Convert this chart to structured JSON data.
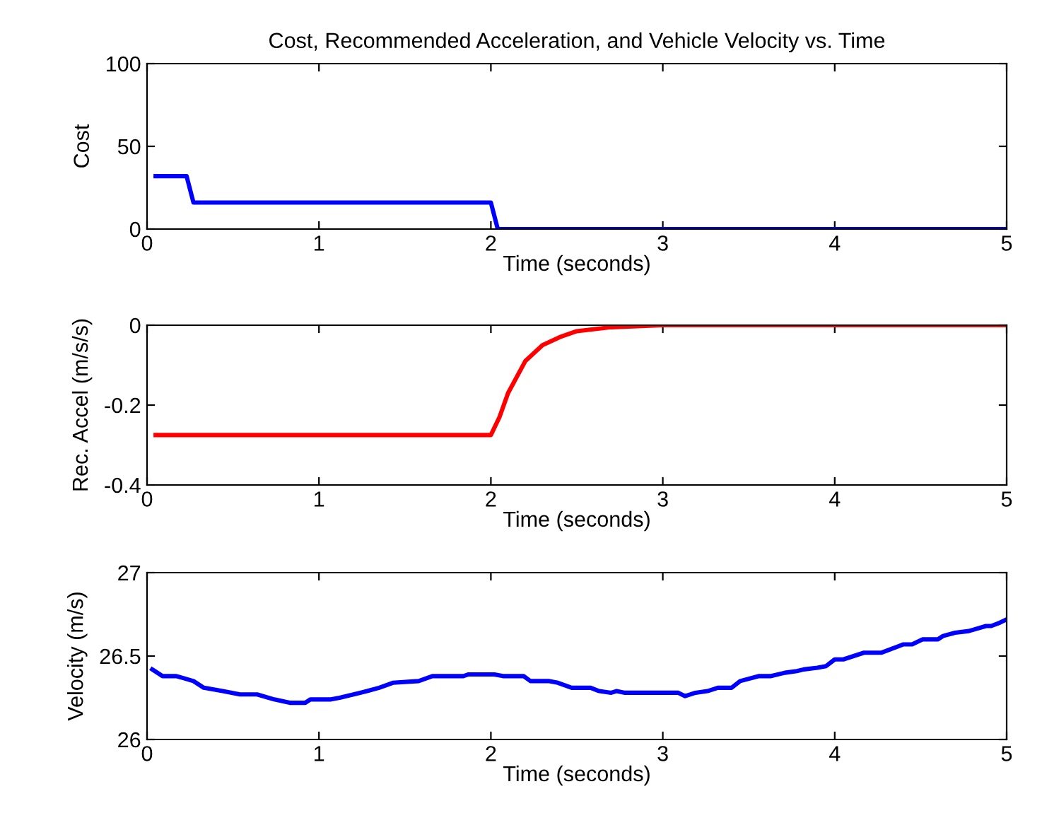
{
  "chart_data": [
    {
      "type": "line",
      "title": "Cost, Recommended Acceleration, and Vehicle Velocity vs. Time",
      "xlabel": "Time (seconds)",
      "ylabel": "Cost",
      "xlim": [
        0,
        5
      ],
      "xticks": [
        0,
        1,
        2,
        3,
        4,
        5
      ],
      "ylim": [
        0,
        100
      ],
      "yticks": [
        0,
        50,
        100
      ],
      "grid": false,
      "legend": false,
      "series": [
        {
          "color": "#0000ff",
          "x": [
            0.05,
            0.23,
            0.27,
            2.0,
            2.04,
            5.0
          ],
          "values": [
            32,
            32,
            16,
            16,
            0,
            0
          ]
        }
      ]
    },
    {
      "type": "line",
      "xlabel": "Time (seconds)",
      "ylabel": "Rec. Accel (m/s/s)",
      "xlim": [
        0,
        5
      ],
      "xticks": [
        0,
        1,
        2,
        3,
        4,
        5
      ],
      "ylim": [
        -0.4,
        0
      ],
      "yticks": [
        -0.4,
        -0.2,
        0
      ],
      "grid": false,
      "legend": false,
      "series": [
        {
          "color": "#ff0000",
          "x": [
            0.05,
            2.0,
            2.05,
            2.1,
            2.2,
            2.3,
            2.4,
            2.5,
            2.7,
            3.0,
            5.0
          ],
          "values": [
            -0.275,
            -0.275,
            -0.23,
            -0.17,
            -0.09,
            -0.05,
            -0.03,
            -0.015,
            -0.005,
            0,
            0
          ]
        }
      ]
    },
    {
      "type": "line",
      "xlabel": "Time (seconds)",
      "ylabel": "Velocity (m/s)",
      "xlim": [
        0,
        5
      ],
      "xticks": [
        0,
        1,
        2,
        3,
        4,
        5
      ],
      "ylim": [
        26,
        27
      ],
      "yticks": [
        26,
        26.5,
        27
      ],
      "grid": false,
      "legend": false,
      "series": [
        {
          "color": "#0000ff",
          "x": [
            0.03,
            0.09,
            0.17,
            0.27,
            0.33,
            0.44,
            0.54,
            0.64,
            0.74,
            0.83,
            0.92,
            0.95,
            1.07,
            1.12,
            1.28,
            1.35,
            1.43,
            1.58,
            1.66,
            1.84,
            1.87,
            2.02,
            2.07,
            2.19,
            2.23,
            2.34,
            2.39,
            2.47,
            2.58,
            2.63,
            2.7,
            2.73,
            2.78,
            3.09,
            3.13,
            3.19,
            3.26,
            3.32,
            3.4,
            3.45,
            3.56,
            3.63,
            3.71,
            3.78,
            3.82,
            3.9,
            3.95,
            4.0,
            4.05,
            4.17,
            4.27,
            4.4,
            4.45,
            4.51,
            4.6,
            4.63,
            4.7,
            4.78,
            4.88,
            4.91,
            4.96,
            5.0
          ],
          "values": [
            26.42,
            26.38,
            26.38,
            26.35,
            26.31,
            26.29,
            26.27,
            26.27,
            26.24,
            26.22,
            26.22,
            26.24,
            26.24,
            26.25,
            26.29,
            26.31,
            26.34,
            26.35,
            26.38,
            26.38,
            26.39,
            26.39,
            26.38,
            26.38,
            26.35,
            26.35,
            26.34,
            26.31,
            26.31,
            26.29,
            26.28,
            26.29,
            26.28,
            26.28,
            26.26,
            26.28,
            26.29,
            26.31,
            26.31,
            26.35,
            26.38,
            26.38,
            26.4,
            26.41,
            26.42,
            26.43,
            26.44,
            26.48,
            26.48,
            26.52,
            26.52,
            26.57,
            26.57,
            26.6,
            26.6,
            26.62,
            26.64,
            26.65,
            26.68,
            26.68,
            26.7,
            26.72
          ]
        }
      ]
    }
  ]
}
